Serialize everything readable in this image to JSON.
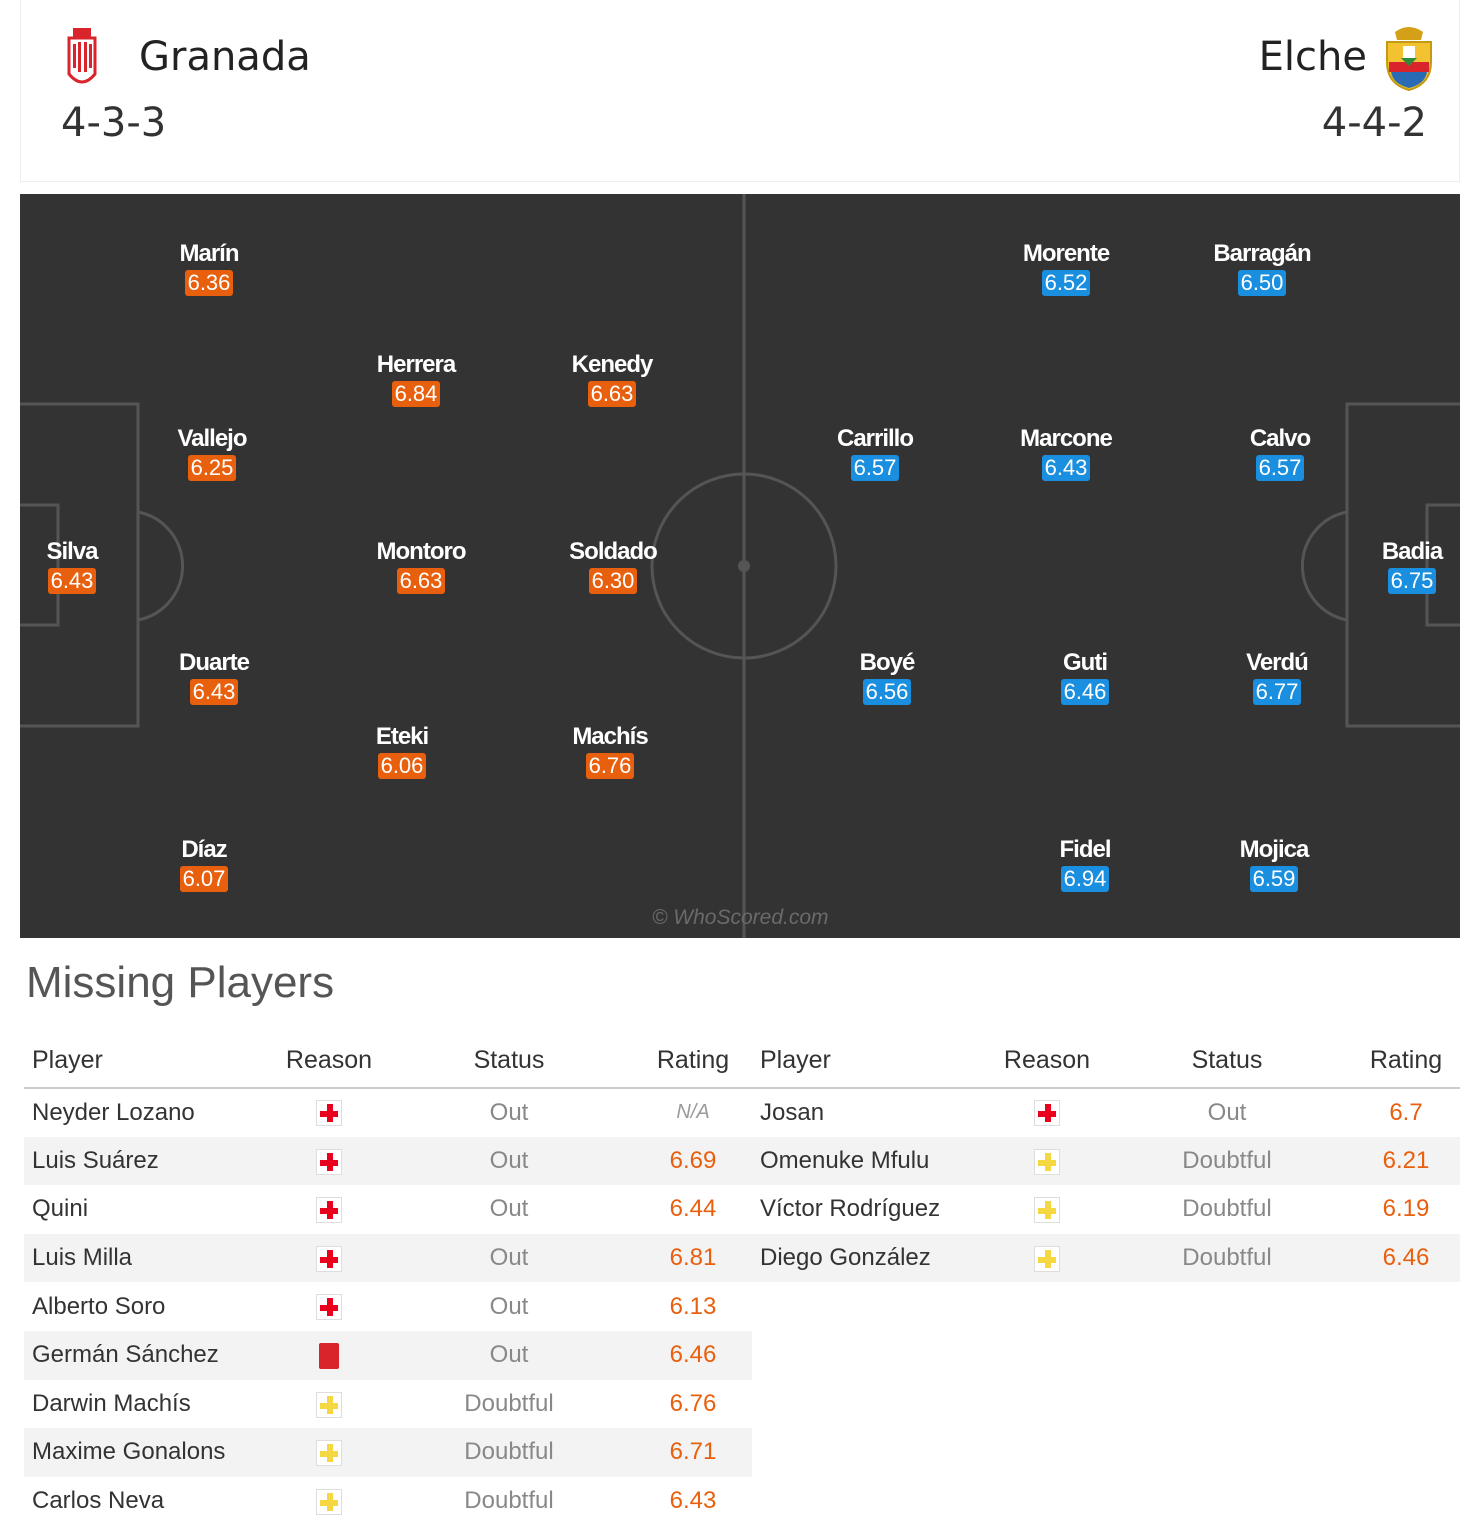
{
  "home": {
    "name": "Granada",
    "formation": "4-3-3",
    "players": [
      {
        "name": "Marín",
        "rating": "6.36"
      },
      {
        "name": "Herrera",
        "rating": "6.84"
      },
      {
        "name": "Kenedy",
        "rating": "6.63"
      },
      {
        "name": "Vallejo",
        "rating": "6.25"
      },
      {
        "name": "Silva",
        "rating": "6.43"
      },
      {
        "name": "Montoro",
        "rating": "6.63"
      },
      {
        "name": "Soldado",
        "rating": "6.30"
      },
      {
        "name": "Duarte",
        "rating": "6.43"
      },
      {
        "name": "Eteki",
        "rating": "6.06"
      },
      {
        "name": "Machís",
        "rating": "6.76"
      },
      {
        "name": "Díaz",
        "rating": "6.07"
      }
    ]
  },
  "away": {
    "name": "Elche",
    "formation": "4-4-2",
    "players": [
      {
        "name": "Morente",
        "rating": "6.52"
      },
      {
        "name": "Barragán",
        "rating": "6.50"
      },
      {
        "name": "Carrillo",
        "rating": "6.57"
      },
      {
        "name": "Marcone",
        "rating": "6.43"
      },
      {
        "name": "Calvo",
        "rating": "6.57"
      },
      {
        "name": "Badia",
        "rating": "6.75"
      },
      {
        "name": "Boyé",
        "rating": "6.56"
      },
      {
        "name": "Guti",
        "rating": "6.46"
      },
      {
        "name": "Verdú",
        "rating": "6.77"
      },
      {
        "name": "Fidel",
        "rating": "6.94"
      },
      {
        "name": "Mojica",
        "rating": "6.59"
      }
    ]
  },
  "watermark": "© WhoScored.com",
  "missing": {
    "title": "Missing Players",
    "headers": {
      "player": "Player",
      "reason": "Reason",
      "status": "Status",
      "rating": "Rating"
    },
    "home": [
      {
        "player": "Neyder Lozano",
        "reason": "injury",
        "status": "Out",
        "rating": "N/A"
      },
      {
        "player": "Luis Suárez",
        "reason": "injury",
        "status": "Out",
        "rating": "6.69"
      },
      {
        "player": "Quini",
        "reason": "injury",
        "status": "Out",
        "rating": "6.44"
      },
      {
        "player": "Luis Milla",
        "reason": "injury",
        "status": "Out",
        "rating": "6.81"
      },
      {
        "player": "Alberto Soro",
        "reason": "injury",
        "status": "Out",
        "rating": "6.13"
      },
      {
        "player": "Germán Sánchez",
        "reason": "red-card",
        "status": "Out",
        "rating": "6.46"
      },
      {
        "player": "Darwin Machís",
        "reason": "doubtful",
        "status": "Doubtful",
        "rating": "6.76"
      },
      {
        "player": "Maxime Gonalons",
        "reason": "doubtful",
        "status": "Doubtful",
        "rating": "6.71"
      },
      {
        "player": "Carlos Neva",
        "reason": "doubtful",
        "status": "Doubtful",
        "rating": "6.43"
      }
    ],
    "away": [
      {
        "player": "Josan",
        "reason": "injury",
        "status": "Out",
        "rating": "6.7"
      },
      {
        "player": "Omenuke Mfulu",
        "reason": "doubtful",
        "status": "Doubtful",
        "rating": "6.21"
      },
      {
        "player": "Víctor Rodríguez",
        "reason": "doubtful",
        "status": "Doubtful",
        "rating": "6.19"
      },
      {
        "player": "Diego González",
        "reason": "doubtful",
        "status": "Doubtful",
        "rating": "6.46"
      }
    ]
  },
  "colors": {
    "home_rating": "#e8600d",
    "away_rating": "#1a8fe0",
    "pitch": "#333333"
  }
}
